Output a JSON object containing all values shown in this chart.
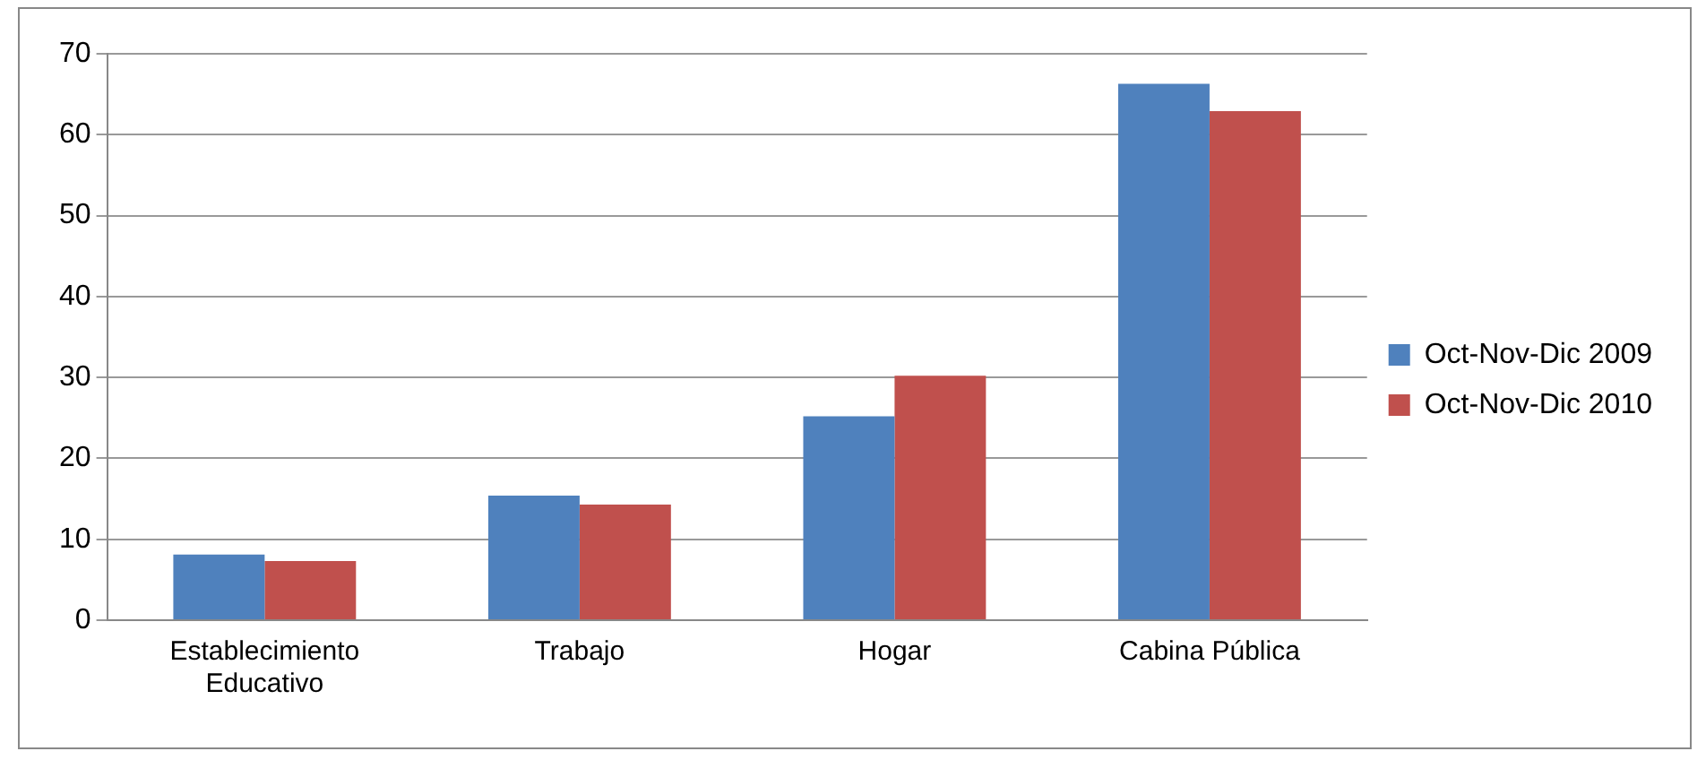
{
  "chart_data": {
    "type": "bar",
    "categories": [
      "Establecimiento Educativo",
      "Trabajo",
      "Hogar",
      "Cabina Pública"
    ],
    "series": [
      {
        "name": "Oct-Nov-Dic 2009",
        "color": "#4f81bd",
        "values": [
          8.1,
          15.4,
          25.2,
          66.3
        ]
      },
      {
        "name": "Oct-Nov-Dic 2010",
        "color": "#c0504d",
        "values": [
          7.3,
          14.3,
          30.2,
          62.9
        ]
      }
    ],
    "ylim": [
      0,
      70
    ],
    "yticks": [
      0,
      10,
      20,
      30,
      40,
      50,
      60,
      70
    ],
    "grid": "y",
    "legend": "right"
  }
}
